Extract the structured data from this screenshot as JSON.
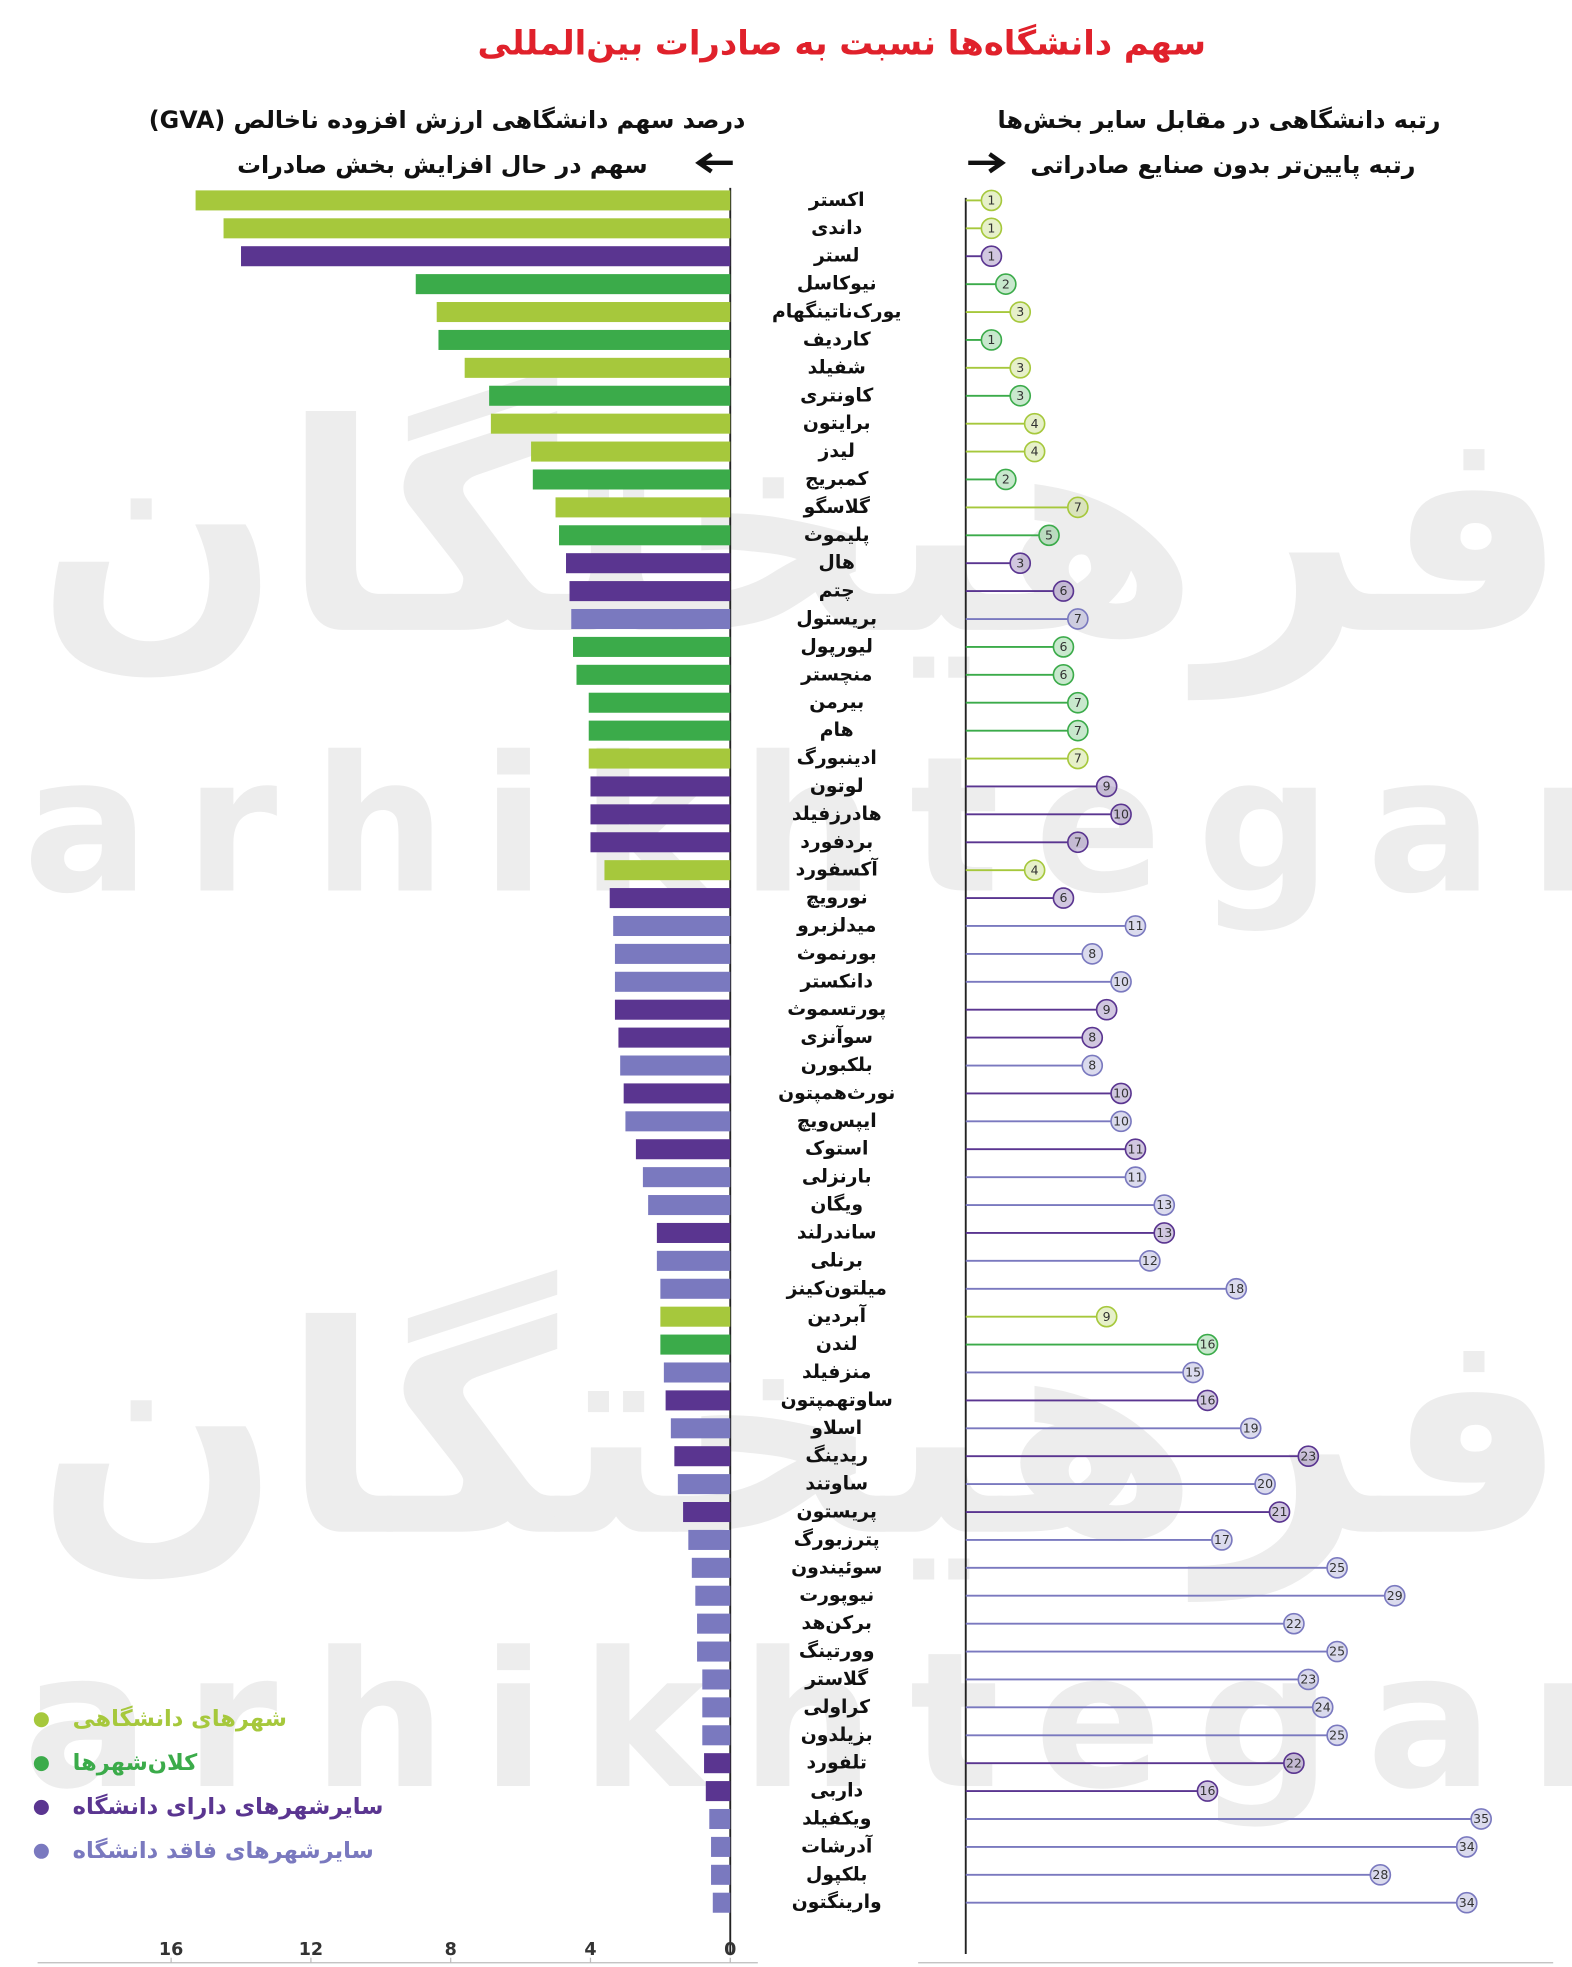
{
  "chart_data": {
    "type": "bar",
    "title": "سهم دانشگاه‌ها نسبت به صادرات بین‌المللی",
    "x_label": "درصد سهم دانشگاهی ارزش افزوده ناخالص (GVA)",
    "x_direction_label": "سهم در حال افزایش بخش صادرات",
    "rank_label": "رتبه دانشگاهی در مقابل سایر بخش‌ها",
    "rank_direction_label": "رتبه پایین‌تر بدون صنایع صادراتی",
    "watermark": {
      "logo": "فرهیختگان",
      "latin": "farhikhtegan"
    },
    "xlim": [
      0,
      20
    ],
    "xticks": [
      16,
      12,
      8,
      4,
      0
    ],
    "categories": [
      "اکستر",
      "داندی",
      "لستر",
      "نیوکاسل",
      "یورک‌ناتینگهام",
      "کاردیف",
      "شفیلد",
      "کاونتری",
      "برایتون",
      "لیدز",
      "کمبریج",
      "گلاسگو",
      "پلیموث",
      "هال",
      "چتم",
      "بریستول",
      "لیورپول",
      "منچستر",
      "بیرمن",
      "هام",
      "ادینبورگ",
      "لوتون",
      "هادرزفیلد",
      "بردفورد",
      "آکسفورد",
      "نورویچ",
      "میدلزبرو",
      "بورنموث",
      "دانکستر",
      "پورتسموث",
      "سوآنزی",
      "بلکبورن",
      "نورث‌همپتون",
      "ایپس‌ویچ",
      "استوک",
      "بارنزلی",
      "ویگان",
      "ساندرلند",
      "برنلی",
      "میلتون‌کینز",
      "آبردین",
      "لندن",
      "منزفیلد",
      "ساوتهمپتون",
      "اسلاو",
      "ریدینگ",
      "ساوتند",
      "پریستون",
      "پترزبورگ",
      "سوئیندون",
      "نیوپورت",
      "برکن‌هد",
      "وورتینگ",
      "گلاستر",
      "کراولی",
      "بزیلدون",
      "تلفورد",
      "داربی",
      "ویکفیلد",
      "آدرشات",
      "بلکپول",
      "وارینگتون"
    ],
    "series": [
      {
        "name": "شهرهای دانشگاهی",
        "color": "#a6c83c",
        "values": [
          15.3,
          14.5,
          null,
          null,
          8.4,
          null,
          7.6,
          null,
          6.85,
          5.7,
          null,
          5.0,
          null,
          null,
          null,
          null,
          null,
          null,
          null,
          null,
          4.05,
          null,
          null,
          null,
          3.6,
          null,
          null,
          null,
          null,
          null,
          null,
          null,
          null,
          null,
          null,
          null,
          null,
          null,
          null,
          null,
          2.0,
          null,
          null,
          null,
          null,
          null,
          null,
          null,
          null,
          null,
          null,
          null,
          null,
          null,
          null,
          null,
          null,
          null,
          null,
          null,
          null,
          null
        ],
        "ranks": [
          1,
          1,
          null,
          null,
          3,
          null,
          3,
          null,
          4,
          4,
          null,
          7,
          null,
          null,
          null,
          null,
          null,
          null,
          null,
          null,
          7,
          null,
          null,
          null,
          4,
          null,
          null,
          null,
          null,
          null,
          null,
          null,
          null,
          null,
          null,
          null,
          null,
          null,
          null,
          null,
          9,
          null,
          null,
          null,
          null,
          null,
          null,
          null,
          null,
          null,
          null,
          null,
          null,
          null,
          null,
          null,
          null,
          null,
          null,
          null,
          null,
          null
        ]
      },
      {
        "name": "کلان‌شهرها",
        "color": "#3bab4a",
        "values": [
          null,
          null,
          null,
          9.0,
          null,
          8.35,
          null,
          6.9,
          null,
          null,
          5.65,
          null,
          4.9,
          null,
          null,
          null,
          4.5,
          4.4,
          4.05,
          4.05,
          null,
          null,
          null,
          null,
          null,
          null,
          null,
          null,
          null,
          null,
          null,
          null,
          null,
          null,
          null,
          null,
          null,
          null,
          null,
          null,
          null,
          2.0,
          null,
          null,
          null,
          null,
          null,
          null,
          null,
          null,
          null,
          null,
          null,
          null,
          null,
          null,
          null,
          null,
          null,
          null,
          null,
          null
        ],
        "ranks": [
          null,
          null,
          null,
          2,
          null,
          1,
          null,
          3,
          null,
          null,
          2,
          null,
          5,
          null,
          null,
          null,
          6,
          6,
          7,
          7,
          null,
          null,
          null,
          null,
          null,
          null,
          null,
          null,
          null,
          null,
          null,
          null,
          null,
          null,
          null,
          null,
          null,
          null,
          null,
          null,
          null,
          16,
          null,
          null,
          null,
          null,
          null,
          null,
          null,
          null,
          null,
          null,
          null,
          null,
          null,
          null,
          null,
          null,
          null,
          null,
          null,
          null
        ]
      },
      {
        "name": "سایرشهرهای دارای دانشگاه",
        "color": "#5a3590",
        "values": [
          null,
          null,
          14.0,
          null,
          null,
          null,
          null,
          null,
          null,
          null,
          null,
          null,
          null,
          4.7,
          4.6,
          null,
          null,
          null,
          null,
          null,
          null,
          4.0,
          4.0,
          4.0,
          null,
          3.45,
          null,
          null,
          null,
          3.3,
          3.2,
          null,
          3.05,
          null,
          2.7,
          null,
          null,
          2.1,
          null,
          null,
          null,
          null,
          null,
          1.85,
          null,
          1.6,
          null,
          1.35,
          null,
          null,
          null,
          null,
          null,
          null,
          null,
          null,
          0.75,
          0.7,
          null,
          null,
          null,
          null
        ],
        "ranks": [
          null,
          null,
          1,
          null,
          null,
          null,
          null,
          null,
          null,
          null,
          null,
          null,
          null,
          3,
          6,
          null,
          null,
          null,
          null,
          null,
          null,
          9,
          10,
          7,
          null,
          6,
          null,
          null,
          null,
          9,
          8,
          null,
          10,
          null,
          11,
          null,
          null,
          13,
          null,
          null,
          null,
          null,
          null,
          16,
          null,
          23,
          null,
          21,
          null,
          null,
          null,
          null,
          null,
          null,
          null,
          null,
          22,
          16,
          null,
          null,
          null,
          null
        ]
      },
      {
        "name": "سایرشهرهای فاقد دانشگاه",
        "color": "#7a79bf",
        "values": [
          null,
          null,
          null,
          null,
          null,
          null,
          null,
          null,
          null,
          null,
          null,
          null,
          null,
          null,
          null,
          4.55,
          null,
          null,
          null,
          null,
          null,
          null,
          null,
          null,
          null,
          null,
          3.35,
          3.3,
          3.3,
          null,
          null,
          3.15,
          null,
          3.0,
          null,
          2.5,
          2.35,
          null,
          2.1,
          2.0,
          null,
          null,
          1.9,
          null,
          1.7,
          null,
          1.5,
          null,
          1.2,
          1.1,
          1.0,
          0.95,
          0.95,
          0.8,
          0.8,
          0.8,
          null,
          null,
          0.6,
          0.55,
          0.55,
          0.5
        ],
        "ranks": [
          null,
          null,
          null,
          null,
          null,
          null,
          null,
          null,
          null,
          null,
          null,
          null,
          null,
          null,
          null,
          7,
          null,
          null,
          null,
          null,
          null,
          null,
          null,
          null,
          null,
          null,
          11,
          8,
          10,
          null,
          null,
          8,
          null,
          10,
          null,
          11,
          13,
          null,
          12,
          18,
          null,
          null,
          15,
          null,
          19,
          null,
          20,
          null,
          17,
          25,
          29,
          22,
          25,
          23,
          24,
          25,
          null,
          null,
          35,
          34,
          28,
          34
        ]
      }
    ]
  }
}
